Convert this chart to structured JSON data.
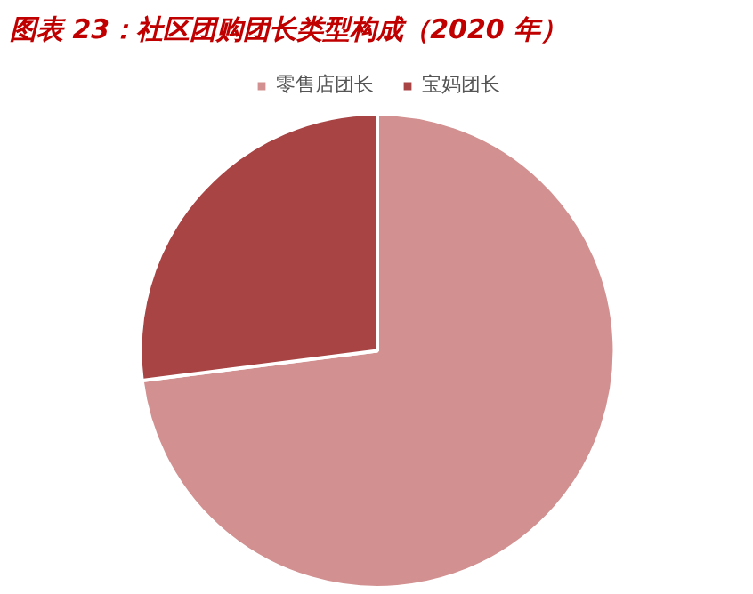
{
  "chart_data": {
    "type": "pie",
    "title": "图表 23：社区团购团长类型构成（2020 年）",
    "categories": [
      "零售店团长",
      "宝妈团长"
    ],
    "values": [
      73,
      27
    ],
    "colors": [
      "#d29090",
      "#a84444"
    ],
    "legend": "top"
  }
}
